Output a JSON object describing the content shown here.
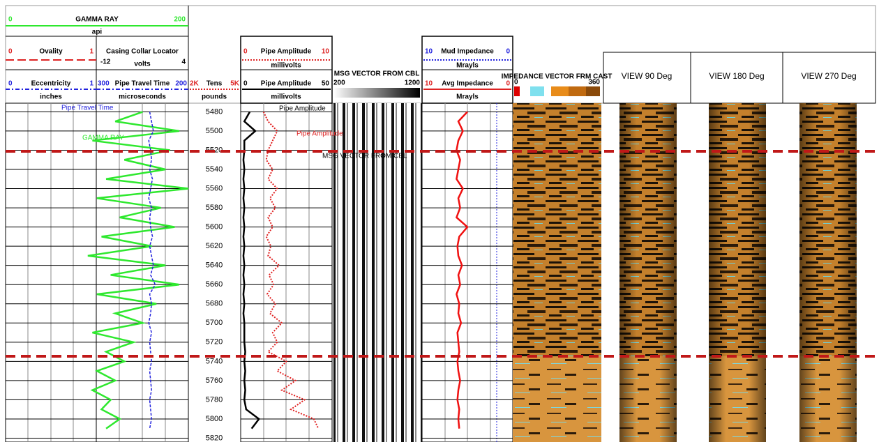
{
  "tracks": {
    "gamma_ray": {
      "name": "GAMMA RAY",
      "left": 0,
      "right": 200,
      "unit": "api"
    },
    "ovality": {
      "name": "Ovality",
      "left": 0,
      "right": 1
    },
    "eccentricity": {
      "name": "Eccentricity",
      "left": 0,
      "right": 1,
      "unit": "inches"
    },
    "casing_collar_locator": {
      "name": "Casing Collar Locator",
      "left": -12,
      "right": 4,
      "unit": "volts"
    },
    "pipe_travel_time": {
      "name": "Pipe Travel Time",
      "left": 300,
      "right": 200,
      "unit": "microseconds"
    },
    "tension": {
      "name": "Tens",
      "left": {
        "value": 2000,
        "label": "2K"
      },
      "right": {
        "value": 5000,
        "label": "5K"
      },
      "unit": "pounds"
    },
    "pipe_amplitude_10": {
      "name": "Pipe Amplitude",
      "left": 0,
      "right": 10,
      "unit": "millivolts"
    },
    "pipe_amplitude_50": {
      "name": "Pipe Amplitude",
      "left": 0,
      "right": 50,
      "unit": "millivolts"
    },
    "msg_vector": {
      "name": "MSG VECTOR FROM CBL",
      "left": 200,
      "right": 1200
    },
    "mud_impedance": {
      "name": "Mud Impedance",
      "left": 10,
      "right": 0,
      "unit": "Mrayls"
    },
    "avg_impedance": {
      "name": "Avg Impedance",
      "left": 10,
      "right": 0,
      "unit": "Mrayls"
    },
    "impedance_vector": {
      "name": "IMPEDANCE VECTOR FRM CAST",
      "left": 0,
      "right": 360
    }
  },
  "views": [
    "VIEW 90 Deg",
    "VIEW 180 Deg",
    "VIEW 270 Deg"
  ],
  "depth_range": [
    5471,
    5824
  ],
  "depth_ticks": [
    5480,
    5500,
    5520,
    5540,
    5560,
    5580,
    5600,
    5620,
    5640,
    5660,
    5680,
    5700,
    5720,
    5740,
    5760,
    5780,
    5800,
    5820
  ],
  "curves": {
    "depth": [
      5480,
      5490,
      5500,
      5510,
      5520,
      5530,
      5540,
      5550,
      5560,
      5570,
      5580,
      5590,
      5600,
      5610,
      5620,
      5630,
      5640,
      5650,
      5660,
      5670,
      5680,
      5690,
      5700,
      5710,
      5720,
      5730,
      5740,
      5750,
      5760,
      5770,
      5780,
      5790,
      5800,
      5810
    ],
    "gamma_ray": [
      150,
      120,
      190,
      95,
      180,
      130,
      175,
      110,
      200,
      100,
      170,
      125,
      185,
      105,
      160,
      90,
      175,
      115,
      190,
      100,
      165,
      120,
      150,
      95,
      140,
      110,
      130,
      100,
      120,
      95,
      115,
      105,
      125,
      110
    ],
    "pipe_travel_time": [
      242,
      240,
      238,
      243,
      241,
      240,
      242,
      239,
      241,
      243,
      240,
      242,
      241,
      239,
      242,
      240,
      238,
      241,
      236,
      242,
      240,
      241,
      243,
      240,
      242,
      241,
      240,
      242,
      241,
      240,
      242,
      241,
      240,
      242
    ],
    "pipe_amplitude_10": [
      2.5,
      3.0,
      4.0,
      3.5,
      3.0,
      2.8,
      3.5,
      3.0,
      4.0,
      3.2,
      3.8,
      3.0,
      3.5,
      2.8,
      3.3,
      3.0,
      4.2,
      3.1,
      3.6,
      2.9,
      3.8,
      3.2,
      4.5,
      3.5,
      4.0,
      3.0,
      5.0,
      4.0,
      6.0,
      4.5,
      7.0,
      5.5,
      8.0,
      8.5
    ],
    "pipe_amplitude_50": [
      5,
      2,
      8,
      2,
      2,
      1.5,
      2,
      1.5,
      2,
      1.5,
      2,
      1.5,
      2,
      1.5,
      2,
      1.5,
      2,
      1.5,
      2,
      1.5,
      2,
      1.5,
      2,
      2,
      2,
      2.5,
      2,
      2.5,
      2,
      2.5,
      2,
      3,
      10,
      6
    ],
    "avg_impedance": [
      5,
      6,
      5.5,
      6,
      6.2,
      5.8,
      6,
      6.2,
      5.5,
      6,
      5.8,
      6.2,
      5,
      5.9,
      6.1,
      6,
      5.6,
      6,
      5.8,
      6.2,
      5.9,
      6,
      5.7,
      6.1,
      6,
      5.9,
      6.1,
      6,
      5.8,
      6,
      6.1,
      5.9,
      6,
      5.9
    ]
  },
  "annotations": [
    "Pipe Travel Time",
    "GAMMA RAY",
    "Pipe Amplitude",
    "Pipe Amplitude",
    "MSG VECTOR FROM CBL"
  ]
}
